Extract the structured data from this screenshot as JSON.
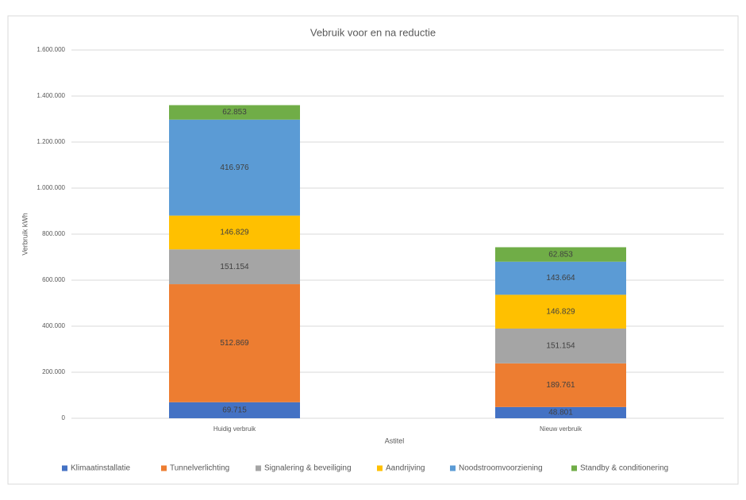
{
  "chart_data": {
    "type": "bar",
    "stacked": true,
    "title": "Vebruik voor en na reductie",
    "y_label": "Verbruik kWh",
    "x_label": "Astitel",
    "categories": [
      "Huidig verbruik",
      "Nieuw verbruik"
    ],
    "series": [
      {
        "name": "Klimaatinstallatie",
        "color": "#4472c4",
        "values": [
          69715,
          48801
        ],
        "value_labels": [
          "69.715",
          "48.801"
        ]
      },
      {
        "name": "Tunnelverlichting",
        "color": "#ed7d31",
        "values": [
          512869,
          189761
        ],
        "value_labels": [
          "512.869",
          "189.761"
        ]
      },
      {
        "name": "Signalering & beveiliging",
        "color": "#a5a5a5",
        "values": [
          151154,
          151154
        ],
        "value_labels": [
          "151.154",
          "151.154"
        ]
      },
      {
        "name": "Aandrijving",
        "color": "#ffc000",
        "values": [
          146829,
          146829
        ],
        "value_labels": [
          "146.829",
          "146.829"
        ]
      },
      {
        "name": "Noodstroomvoorziening",
        "color": "#5b9bd5",
        "values": [
          416976,
          143664
        ],
        "value_labels": [
          "416.976",
          "143.664"
        ]
      },
      {
        "name": "Standby & conditionering",
        "color": "#70ad47",
        "values": [
          62853,
          62853
        ],
        "value_labels": [
          "62.853",
          "62.853"
        ]
      }
    ],
    "ylim": [
      0,
      1600000
    ],
    "yticks": [
      0,
      {
        "value": 200000,
        "label": "200.000"
      },
      {
        "value": 400000,
        "label": "400.000"
      },
      {
        "value": 600000,
        "label": "600.000"
      },
      {
        "value": 800000,
        "label": "800.000"
      },
      {
        "value": 1000000,
        "label": "1.000.000"
      },
      {
        "value": 1200000,
        "label": "1.200.000"
      },
      {
        "value": 1400000,
        "label": "1.400.000"
      },
      {
        "value": 1600000,
        "label": "1.600.000"
      }
    ],
    "grid": true,
    "legend": "bottom"
  }
}
